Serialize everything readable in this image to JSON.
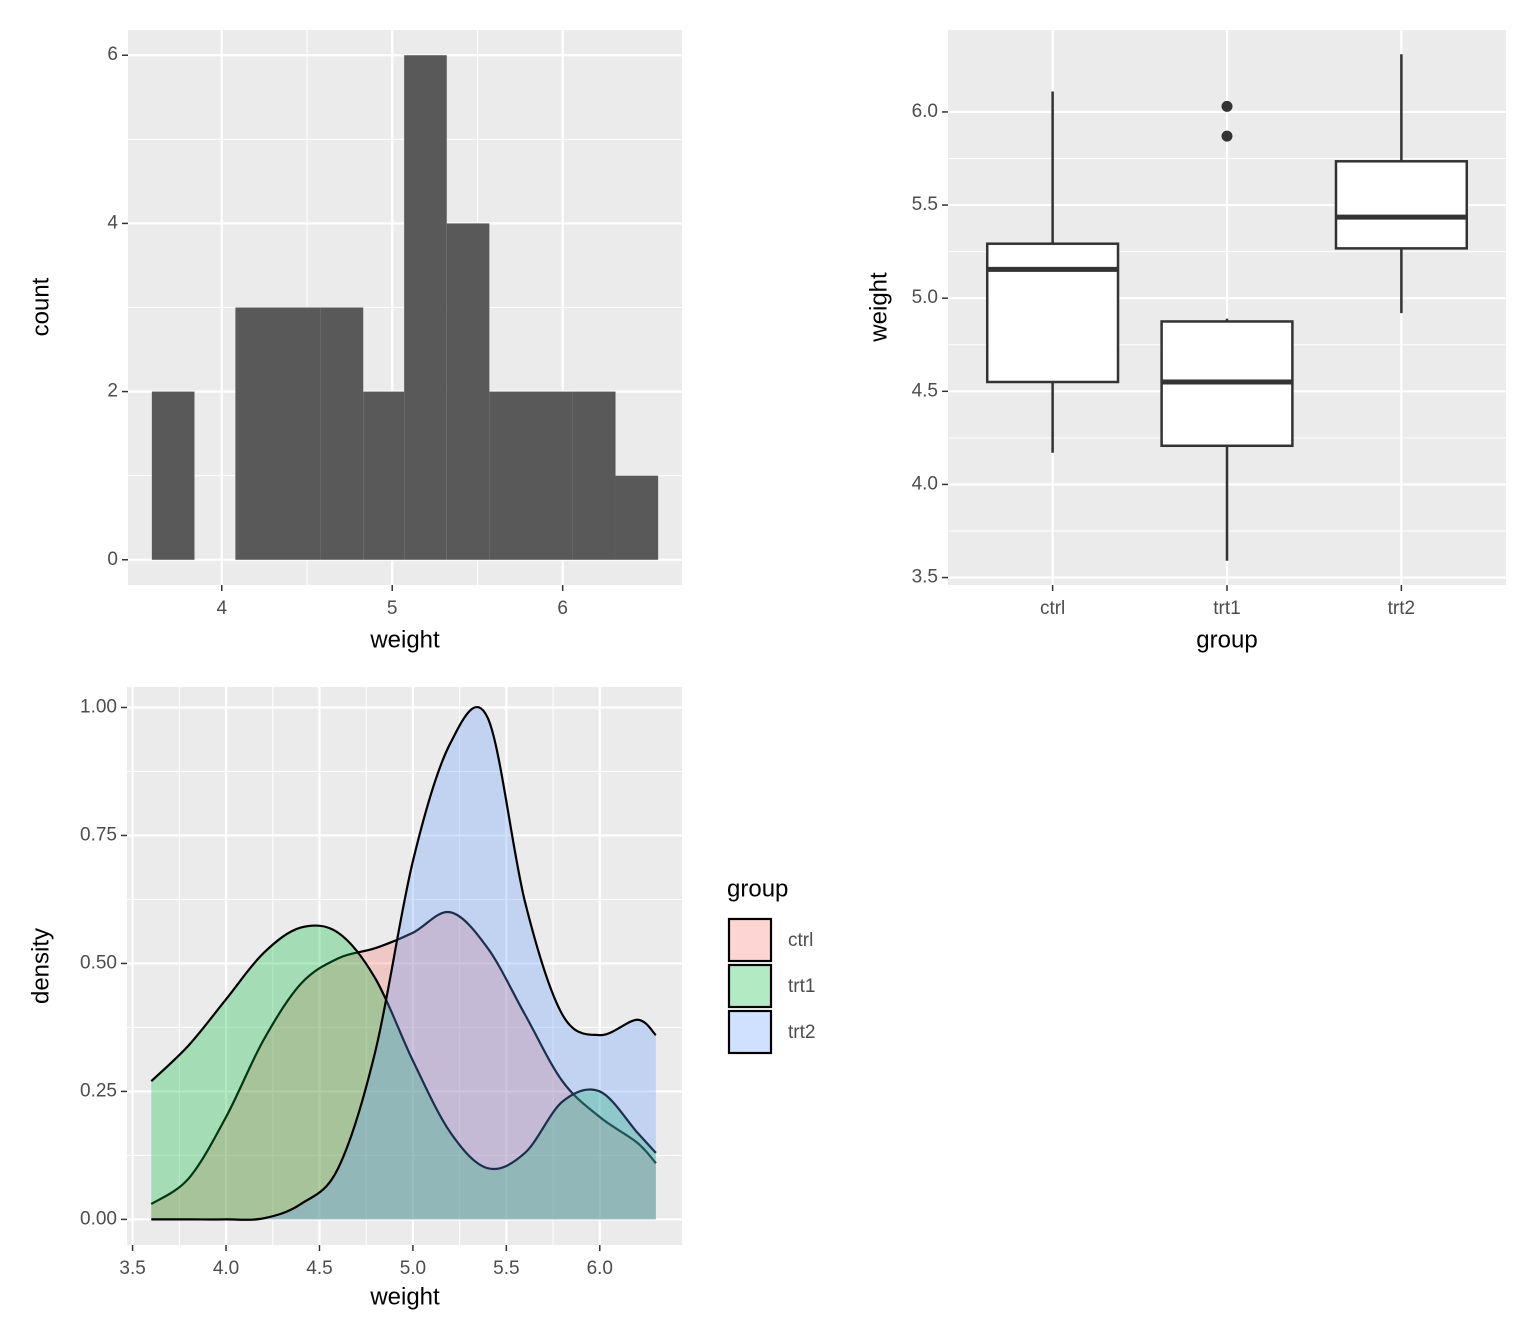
{
  "chart_data": [
    {
      "type": "histogram",
      "x_label": "weight",
      "y_label": "count",
      "bins": [
        3.59,
        3.84,
        4.08,
        4.33,
        4.58,
        4.83,
        5.07,
        5.32,
        5.57,
        5.82,
        6.06,
        6.31,
        6.56
      ],
      "counts": [
        2,
        0,
        3,
        3,
        3,
        2,
        6,
        4,
        2,
        2,
        2,
        1
      ],
      "color": "#595959",
      "xlim": [
        3.45,
        6.7
      ],
      "ylim": [
        -0.3,
        6.3
      ],
      "xticks": [
        4,
        5,
        6
      ],
      "yticks": [
        0,
        2,
        4,
        6
      ],
      "grid": true
    },
    {
      "type": "boxplot",
      "x_label": "group",
      "y_label": "weight",
      "categories": [
        "ctrl",
        "trt1",
        "trt2"
      ],
      "boxes": [
        {
          "min": 4.17,
          "q1": 4.55,
          "median": 5.155,
          "q3": 5.2925,
          "max": 6.11,
          "outliers": []
        },
        {
          "min": 3.59,
          "q1": 4.2075,
          "median": 4.55,
          "q3": 4.875,
          "max": 4.89,
          "outliers": [
            5.87,
            6.03
          ]
        },
        {
          "min": 4.92,
          "q1": 5.2675,
          "median": 5.435,
          "q3": 5.735,
          "max": 6.31,
          "outliers": []
        }
      ],
      "color": "#333333",
      "fill": "#ffffff",
      "ylim": [
        3.46,
        6.44
      ],
      "yticks": [
        3.5,
        {
          "value": 4,
          "label": "4.0"
        },
        4.5,
        {
          "value": 5,
          "label": "5.0"
        },
        5.5,
        {
          "value": 6,
          "label": "6.0"
        }
      ],
      "grid": true
    },
    {
      "type": "density",
      "x_label": "weight",
      "y_label": "density",
      "x": [
        3.6,
        3.8,
        4.0,
        4.2,
        4.4,
        4.6,
        4.8,
        5.0,
        5.2,
        5.4,
        5.6,
        5.8,
        6.0,
        6.2,
        6.3
      ],
      "series": [
        {
          "name": "ctrl",
          "color": "#F8766D",
          "values": [
            0.03,
            0.08,
            0.2,
            0.35,
            0.46,
            0.51,
            0.53,
            0.56,
            0.6,
            0.53,
            0.4,
            0.27,
            0.2,
            0.15,
            0.11
          ]
        },
        {
          "name": "trt1",
          "color": "#00BA38",
          "values": [
            0.27,
            0.34,
            0.43,
            0.52,
            0.57,
            0.56,
            0.47,
            0.31,
            0.17,
            0.1,
            0.13,
            0.23,
            0.25,
            0.17,
            0.13
          ]
        },
        {
          "name": "trt2",
          "color": "#619CFF",
          "values": [
            0,
            0,
            0,
            0.002,
            0.03,
            0.1,
            0.33,
            0.7,
            0.93,
            0.98,
            0.62,
            0.4,
            0.36,
            0.39,
            0.36
          ]
        }
      ],
      "fill_alpha": 0.3,
      "legend_title": "group",
      "legend": "right",
      "xlim": [
        3.47,
        6.44
      ],
      "ylim": [
        -0.05,
        1.04
      ],
      "xticks": [
        3.5,
        {
          "value": 4,
          "label": "4.0"
        },
        4.5,
        {
          "value": 5,
          "label": "5.0"
        },
        5.5,
        {
          "value": 6,
          "label": "6.0"
        }
      ],
      "yticks": [
        {
          "value": 0,
          "label": "0.00"
        },
        {
          "value": 0.25,
          "label": "0.25"
        },
        {
          "value": 0.5,
          "label": "0.50"
        },
        {
          "value": 0.75,
          "label": "0.75"
        },
        {
          "value": 1,
          "label": "1.00"
        }
      ],
      "grid": true
    }
  ]
}
